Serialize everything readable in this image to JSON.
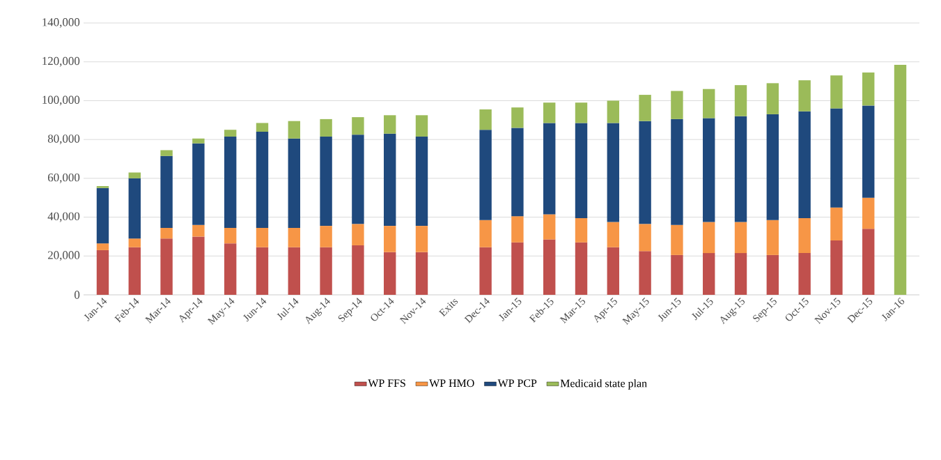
{
  "chart_data": {
    "type": "bar",
    "stacked": true,
    "categories": [
      "Jan-14",
      "Feb-14",
      "Mar-14",
      "Apr-14",
      "May-14",
      "Jun-14",
      "Jul-14",
      "Aug-14",
      "Sep-14",
      "Oct-14",
      "Nov-14",
      "Exits",
      "Dec-14",
      "Jan-15",
      "Feb-15",
      "Mar-15",
      "Apr-15",
      "May-15",
      "Jun-15",
      "Jul-15",
      "Aug-15",
      "Sep-15",
      "Oct-15",
      "Nov-15",
      "Dec-15",
      "Jan-16"
    ],
    "series": [
      {
        "name": "WP FFS",
        "color": "#c0504d",
        "values": [
          23000,
          24500,
          29000,
          30000,
          26500,
          24500,
          24500,
          24500,
          25500,
          22000,
          22000,
          null,
          24500,
          27000,
          28500,
          27000,
          24500,
          22500,
          20500,
          21500,
          21500,
          20500,
          21500,
          28000,
          34000,
          null
        ]
      },
      {
        "name": "WP HMO",
        "color": "#f79646",
        "values": [
          3500,
          4500,
          5500,
          6000,
          8000,
          10000,
          10000,
          11000,
          11000,
          13500,
          13500,
          null,
          14000,
          13500,
          13000,
          12500,
          13000,
          14000,
          15500,
          16000,
          16000,
          18000,
          18000,
          17000,
          16000,
          null
        ]
      },
      {
        "name": "WP PCP",
        "color": "#1f497d",
        "values": [
          28500,
          31000,
          37000,
          42000,
          47000,
          49500,
          46000,
          46000,
          46000,
          47500,
          46000,
          null,
          46500,
          45500,
          47000,
          49000,
          51000,
          53000,
          54500,
          53500,
          54500,
          54500,
          55000,
          51000,
          47500,
          null
        ]
      },
      {
        "name": "Medicaid state plan",
        "color": "#9bbb59",
        "values": [
          1000,
          3000,
          3000,
          2500,
          3500,
          4500,
          9000,
          9000,
          9000,
          9500,
          11000,
          null,
          10500,
          10500,
          10500,
          10500,
          11500,
          13500,
          14500,
          15000,
          16000,
          16000,
          16000,
          17000,
          17000,
          118500
        ]
      }
    ],
    "ylim": [
      0,
      140000
    ],
    "yticks": [
      {
        "value": 0,
        "label": "0"
      },
      {
        "value": 20000,
        "label": "20,000"
      },
      {
        "value": 40000,
        "label": "40,000"
      },
      {
        "value": 60000,
        "label": "60,000"
      },
      {
        "value": 80000,
        "label": "80,000"
      },
      {
        "value": 100000,
        "label": "100,000"
      },
      {
        "value": 120000,
        "label": "120,000"
      },
      {
        "value": 140000,
        "label": "140,000"
      }
    ],
    "grid": "y",
    "legend": "bottom"
  }
}
